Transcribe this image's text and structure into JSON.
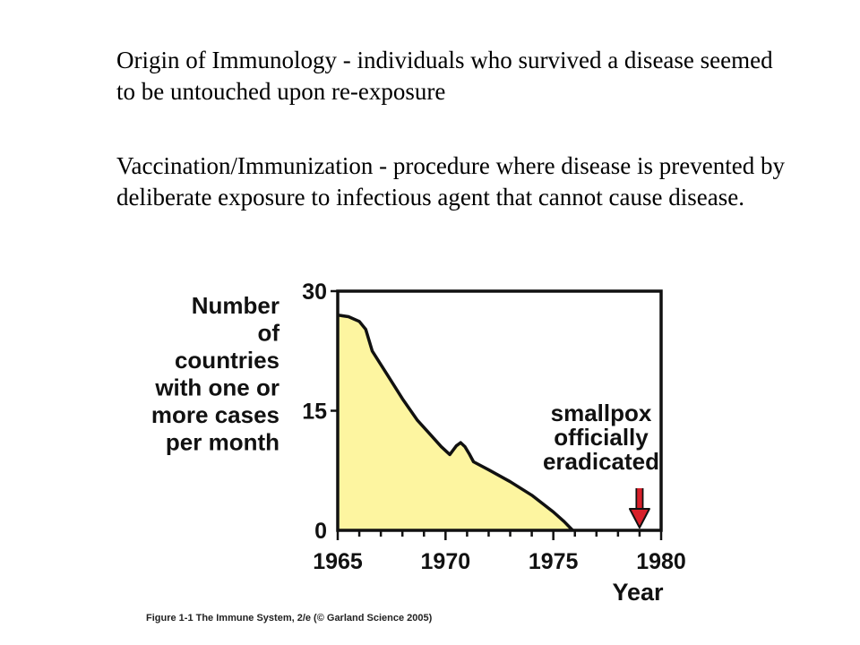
{
  "paragraphs": [
    "Origin of Immunology - individuals who survived a disease seemed to be untouched upon re-exposure",
    "Vaccination/Immunization - procedure where disease is prevented by deliberate exposure to infectious agent that cannot cause disease."
  ],
  "caption": "Figure 1-1 The Immune System, 2/e (© Garland Science 2005)",
  "chart_data": {
    "type": "area",
    "title": "",
    "ylabel_lines": [
      "Number",
      "of",
      "countries",
      "with one or",
      "more cases",
      "per month"
    ],
    "xlabel": "Year",
    "xlim": [
      1965,
      1980
    ],
    "ylim": [
      0,
      30
    ],
    "x_ticks": [
      1965,
      1970,
      1975,
      1980
    ],
    "y_ticks": [
      0,
      15,
      30
    ],
    "fill_color": "#fdf5a0",
    "line_color": "#111111",
    "arrow_color": "#d8202a",
    "grid": false,
    "series": [
      {
        "x": [
          1965,
          1965.5,
          1966,
          1966.3,
          1966.6,
          1967.3,
          1968,
          1968.7,
          1969.3,
          1969.8,
          1970.2,
          1970.5,
          1970.7,
          1970.9,
          1971.1,
          1971.3,
          1972,
          1973,
          1974,
          1975,
          1975.5,
          1975.9
        ],
        "y": [
          27.0,
          26.8,
          26.2,
          25.2,
          22.5,
          19.5,
          16.5,
          13.8,
          12.0,
          10.5,
          9.5,
          10.6,
          11.0,
          10.5,
          9.6,
          8.6,
          7.6,
          6.1,
          4.4,
          2.3,
          1.1,
          0
        ]
      }
    ],
    "annotation": {
      "lines": [
        "smallpox",
        "officially",
        "eradicated"
      ],
      "x": 1979
    }
  }
}
